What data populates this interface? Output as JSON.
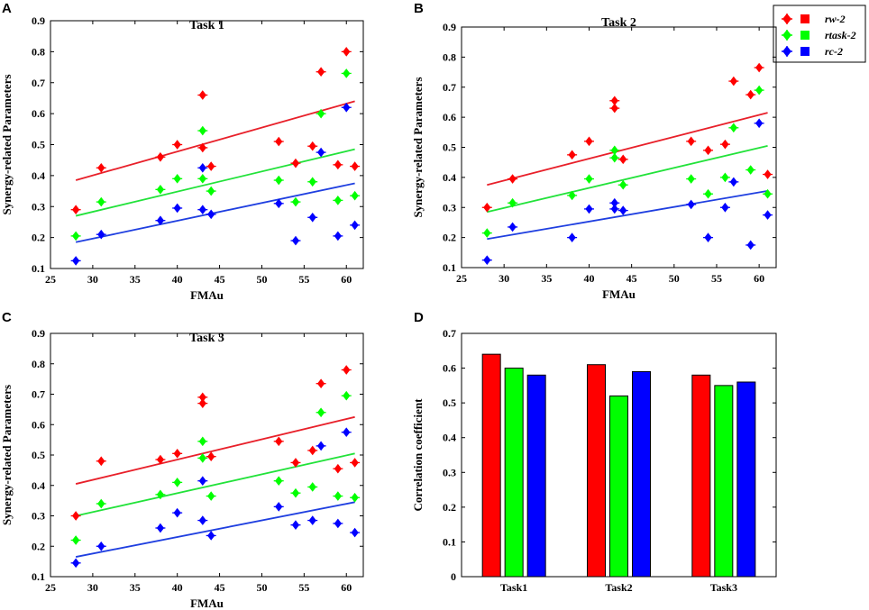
{
  "legend": [
    {
      "label": "rw-2",
      "color": "#ff0000"
    },
    {
      "label": "rtask-2",
      "color": "#00ff00"
    },
    {
      "label": "rc-2",
      "color": "#0000ff"
    }
  ],
  "colors": {
    "r": "#ff0000",
    "g": "#00ff00",
    "b": "#0000ff",
    "line_red": "#e8202a",
    "line_green": "#22e23a",
    "line_blue": "#1f3fe0"
  },
  "chart_data": [
    {
      "panel": "A",
      "type": "scatter",
      "title": "Task 1",
      "xlabel": "FMAu",
      "ylabel": "Synergy-related Parameters",
      "xlim": [
        25,
        62
      ],
      "ylim": [
        0.1,
        0.9
      ],
      "xticks": [
        25,
        30,
        35,
        40,
        45,
        50,
        55,
        60
      ],
      "yticks": [
        0.1,
        0.2,
        0.3,
        0.4,
        0.5,
        0.6,
        0.7,
        0.8,
        0.9
      ],
      "series": [
        {
          "name": "rw-2",
          "color": "#ff0000",
          "points": [
            [
              28,
              0.29
            ],
            [
              31,
              0.425
            ],
            [
              38,
              0.46
            ],
            [
              40,
              0.5
            ],
            [
              43,
              0.66
            ],
            [
              43,
              0.49
            ],
            [
              44,
              0.43
            ],
            [
              52,
              0.51
            ],
            [
              54,
              0.44
            ],
            [
              56,
              0.495
            ],
            [
              57,
              0.735
            ],
            [
              59,
              0.435
            ],
            [
              60,
              0.8
            ],
            [
              61,
              0.43
            ]
          ],
          "fit": [
            [
              28,
              0.385
            ],
            [
              61,
              0.64
            ]
          ]
        },
        {
          "name": "rtask-2",
          "color": "#00ff00",
          "points": [
            [
              28,
              0.205
            ],
            [
              31,
              0.315
            ],
            [
              38,
              0.355
            ],
            [
              40,
              0.39
            ],
            [
              43,
              0.545
            ],
            [
              43,
              0.39
            ],
            [
              44,
              0.35
            ],
            [
              52,
              0.385
            ],
            [
              54,
              0.315
            ],
            [
              56,
              0.38
            ],
            [
              57,
              0.6
            ],
            [
              59,
              0.32
            ],
            [
              60,
              0.73
            ],
            [
              61,
              0.335
            ]
          ],
          "fit": [
            [
              28,
              0.27
            ],
            [
              61,
              0.485
            ]
          ]
        },
        {
          "name": "rc-2",
          "color": "#0000ff",
          "points": [
            [
              28,
              0.125
            ],
            [
              31,
              0.21
            ],
            [
              38,
              0.255
            ],
            [
              40,
              0.295
            ],
            [
              43,
              0.425
            ],
            [
              43,
              0.29
            ],
            [
              44,
              0.275
            ],
            [
              52,
              0.31
            ],
            [
              54,
              0.19
            ],
            [
              56,
              0.265
            ],
            [
              57,
              0.475
            ],
            [
              59,
              0.205
            ],
            [
              60,
              0.62
            ],
            [
              61,
              0.24
            ]
          ],
          "fit": [
            [
              28,
              0.185
            ],
            [
              61,
              0.375
            ]
          ]
        }
      ]
    },
    {
      "panel": "B",
      "type": "scatter",
      "title": "Task 2",
      "xlabel": "FMAu",
      "ylabel": "Synergy-related Parameters",
      "xlim": [
        25,
        62
      ],
      "ylim": [
        0.1,
        0.9
      ],
      "xticks": [
        25,
        30,
        35,
        40,
        45,
        50,
        55,
        60
      ],
      "yticks": [
        0.1,
        0.2,
        0.3,
        0.4,
        0.5,
        0.6,
        0.7,
        0.8,
        0.9
      ],
      "series": [
        {
          "name": "rw-2",
          "color": "#ff0000",
          "points": [
            [
              28,
              0.3
            ],
            [
              31,
              0.395
            ],
            [
              38,
              0.475
            ],
            [
              40,
              0.52
            ],
            [
              43,
              0.655
            ],
            [
              43,
              0.63
            ],
            [
              44,
              0.46
            ],
            [
              52,
              0.52
            ],
            [
              54,
              0.49
            ],
            [
              56,
              0.51
            ],
            [
              57,
              0.72
            ],
            [
              59,
              0.675
            ],
            [
              60,
              0.765
            ],
            [
              61,
              0.41
            ]
          ],
          "fit": [
            [
              28,
              0.375
            ],
            [
              61,
              0.615
            ]
          ]
        },
        {
          "name": "rtask-2",
          "color": "#00ff00",
          "points": [
            [
              28,
              0.215
            ],
            [
              31,
              0.315
            ],
            [
              38,
              0.34
            ],
            [
              40,
              0.395
            ],
            [
              43,
              0.49
            ],
            [
              43,
              0.465
            ],
            [
              44,
              0.375
            ],
            [
              52,
              0.395
            ],
            [
              54,
              0.345
            ],
            [
              56,
              0.4
            ],
            [
              57,
              0.565
            ],
            [
              59,
              0.425
            ],
            [
              60,
              0.69
            ],
            [
              61,
              0.345
            ]
          ],
          "fit": [
            [
              28,
              0.285
            ],
            [
              61,
              0.505
            ]
          ]
        },
        {
          "name": "rc-2",
          "color": "#0000ff",
          "points": [
            [
              28,
              0.125
            ],
            [
              31,
              0.235
            ],
            [
              38,
              0.2
            ],
            [
              40,
              0.295
            ],
            [
              43,
              0.315
            ],
            [
              43,
              0.295
            ],
            [
              44,
              0.29
            ],
            [
              52,
              0.31
            ],
            [
              54,
              0.2
            ],
            [
              56,
              0.3
            ],
            [
              57,
              0.385
            ],
            [
              59,
              0.175
            ],
            [
              60,
              0.58
            ],
            [
              61,
              0.275
            ]
          ],
          "fit": [
            [
              28,
              0.195
            ],
            [
              61,
              0.355
            ]
          ]
        }
      ]
    },
    {
      "panel": "C",
      "type": "scatter",
      "title": "Task 3",
      "xlabel": "FMAu",
      "ylabel": "Synergy-related Parameters",
      "xlim": [
        25,
        62
      ],
      "ylim": [
        0.1,
        0.9
      ],
      "xticks": [
        25,
        30,
        35,
        40,
        45,
        50,
        55,
        60
      ],
      "yticks": [
        0.1,
        0.2,
        0.3,
        0.4,
        0.5,
        0.6,
        0.7,
        0.8,
        0.9
      ],
      "series": [
        {
          "name": "rw-2",
          "color": "#ff0000",
          "points": [
            [
              28,
              0.3
            ],
            [
              31,
              0.48
            ],
            [
              38,
              0.485
            ],
            [
              40,
              0.505
            ],
            [
              43,
              0.69
            ],
            [
              43,
              0.67
            ],
            [
              44,
              0.495
            ],
            [
              52,
              0.545
            ],
            [
              54,
              0.475
            ],
            [
              56,
              0.515
            ],
            [
              57,
              0.735
            ],
            [
              59,
              0.455
            ],
            [
              60,
              0.78
            ],
            [
              61,
              0.475
            ]
          ],
          "fit": [
            [
              28,
              0.405
            ],
            [
              61,
              0.625
            ]
          ]
        },
        {
          "name": "rtask-2",
          "color": "#00ff00",
          "points": [
            [
              28,
              0.22
            ],
            [
              31,
              0.34
            ],
            [
              38,
              0.37
            ],
            [
              40,
              0.41
            ],
            [
              43,
              0.545
            ],
            [
              43,
              0.49
            ],
            [
              44,
              0.365
            ],
            [
              52,
              0.415
            ],
            [
              54,
              0.375
            ],
            [
              56,
              0.395
            ],
            [
              57,
              0.64
            ],
            [
              59,
              0.365
            ],
            [
              60,
              0.695
            ],
            [
              61,
              0.36
            ]
          ],
          "fit": [
            [
              28,
              0.3
            ],
            [
              61,
              0.505
            ]
          ]
        },
        {
          "name": "rc-2",
          "color": "#0000ff",
          "points": [
            [
              28,
              0.145
            ],
            [
              31,
              0.2
            ],
            [
              38,
              0.26
            ],
            [
              40,
              0.31
            ],
            [
              43,
              0.415
            ],
            [
              43,
              0.285
            ],
            [
              44,
              0.235
            ],
            [
              52,
              0.33
            ],
            [
              54,
              0.27
            ],
            [
              56,
              0.285
            ],
            [
              57,
              0.53
            ],
            [
              59,
              0.275
            ],
            [
              60,
              0.575
            ],
            [
              61,
              0.245
            ]
          ],
          "fit": [
            [
              28,
              0.165
            ],
            [
              61,
              0.345
            ]
          ]
        }
      ]
    },
    {
      "panel": "D",
      "type": "bar",
      "ylabel": "Correlation coefficient",
      "categories": [
        "Task1",
        "Task2",
        "Task3"
      ],
      "ylim": [
        0,
        0.7
      ],
      "yticks": [
        0,
        0.1,
        0.2,
        0.3,
        0.4,
        0.5,
        0.6,
        0.7
      ],
      "series": [
        {
          "name": "rw-2",
          "color": "#ff0000",
          "values": [
            0.64,
            0.61,
            0.58
          ]
        },
        {
          "name": "rtask-2",
          "color": "#00ff00",
          "values": [
            0.6,
            0.52,
            0.55
          ]
        },
        {
          "name": "rc-2",
          "color": "#0000ff",
          "values": [
            0.58,
            0.59,
            0.56
          ]
        }
      ]
    }
  ]
}
